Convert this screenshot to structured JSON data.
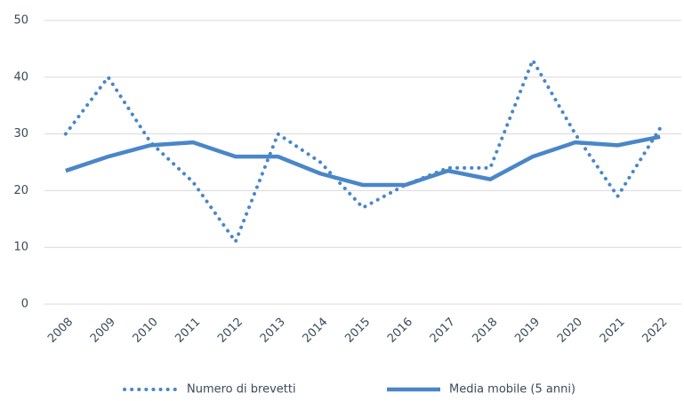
{
  "chart_data": {
    "type": "line",
    "categories": [
      "2008",
      "2009",
      "2010",
      "2011",
      "2012",
      "2013",
      "2014",
      "2015",
      "2016",
      "2017",
      "2018",
      "2019",
      "2020",
      "2021",
      "2022"
    ],
    "series": [
      {
        "name": "Numero di brevetti",
        "color": "#4a86c8",
        "style": "dotted",
        "values": [
          30,
          40,
          28.5,
          21.5,
          11,
          30,
          25,
          17,
          21,
          24,
          24,
          43,
          30,
          19,
          31
        ]
      },
      {
        "name": "Media mobile (5 anni)",
        "color": "#4a86c8",
        "style": "solid",
        "values": [
          23.5,
          26,
          28,
          28.5,
          26,
          26,
          23,
          21,
          21,
          23.5,
          22,
          26,
          28.5,
          28,
          29.5
        ]
      }
    ],
    "ylim": [
      0,
      50
    ],
    "yticks": [
      0,
      10,
      20,
      30,
      40,
      50
    ],
    "grid": true,
    "legend": "bottom"
  }
}
